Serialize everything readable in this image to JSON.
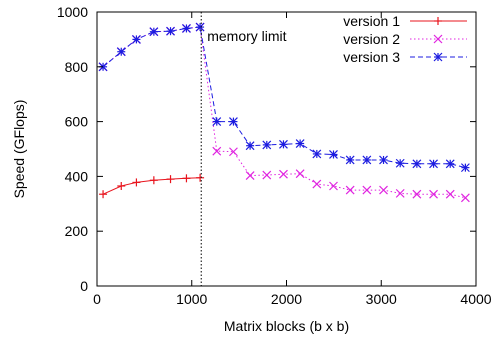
{
  "chart_data": {
    "type": "line",
    "title": "",
    "xlabel": "Matrix blocks (b x b)",
    "ylabel": "Speed (GFlops)",
    "xlim": [
      0,
      4000
    ],
    "ylim": [
      0,
      1000
    ],
    "xticks": [
      0,
      1000,
      2000,
      3000,
      4000
    ],
    "yticks": [
      0,
      200,
      400,
      600,
      800,
      1000
    ],
    "grid": false,
    "legend_position": "top-right",
    "annotation": {
      "text": "memory limit",
      "x": 1100
    },
    "series": [
      {
        "name": "version 1",
        "color": "#e8141d",
        "dash": "solid",
        "marker": "plus",
        "x": [
          64,
          256,
          416,
          600,
          776,
          944,
          1088
        ],
        "y": [
          335,
          365,
          378,
          386,
          390,
          393,
          395
        ]
      },
      {
        "name": "version 2",
        "color": "#e024e0",
        "dash": "dotted",
        "marker": "cross",
        "x": [
          64,
          256,
          416,
          600,
          776,
          944,
          1088,
          1264,
          1440,
          1616,
          1792,
          1968,
          2144,
          2320,
          2496,
          2672,
          2848,
          3024,
          3200,
          3376,
          3552,
          3728,
          3888
        ],
        "y": [
          800,
          855,
          900,
          928,
          930,
          940,
          945,
          492,
          490,
          403,
          405,
          408,
          410,
          372,
          365,
          350,
          350,
          350,
          338,
          335,
          335,
          335,
          322
        ]
      },
      {
        "name": "version 3",
        "color": "#1c1ce0",
        "dash": "dashed",
        "marker": "star",
        "x": [
          64,
          256,
          416,
          600,
          776,
          944,
          1088,
          1264,
          1440,
          1616,
          1792,
          1968,
          2144,
          2320,
          2496,
          2672,
          2848,
          3024,
          3200,
          3376,
          3552,
          3728,
          3888
        ],
        "y": [
          800,
          855,
          900,
          928,
          930,
          940,
          945,
          600,
          600,
          512,
          515,
          517,
          520,
          482,
          480,
          460,
          460,
          460,
          448,
          446,
          446,
          446,
          432
        ]
      }
    ]
  }
}
